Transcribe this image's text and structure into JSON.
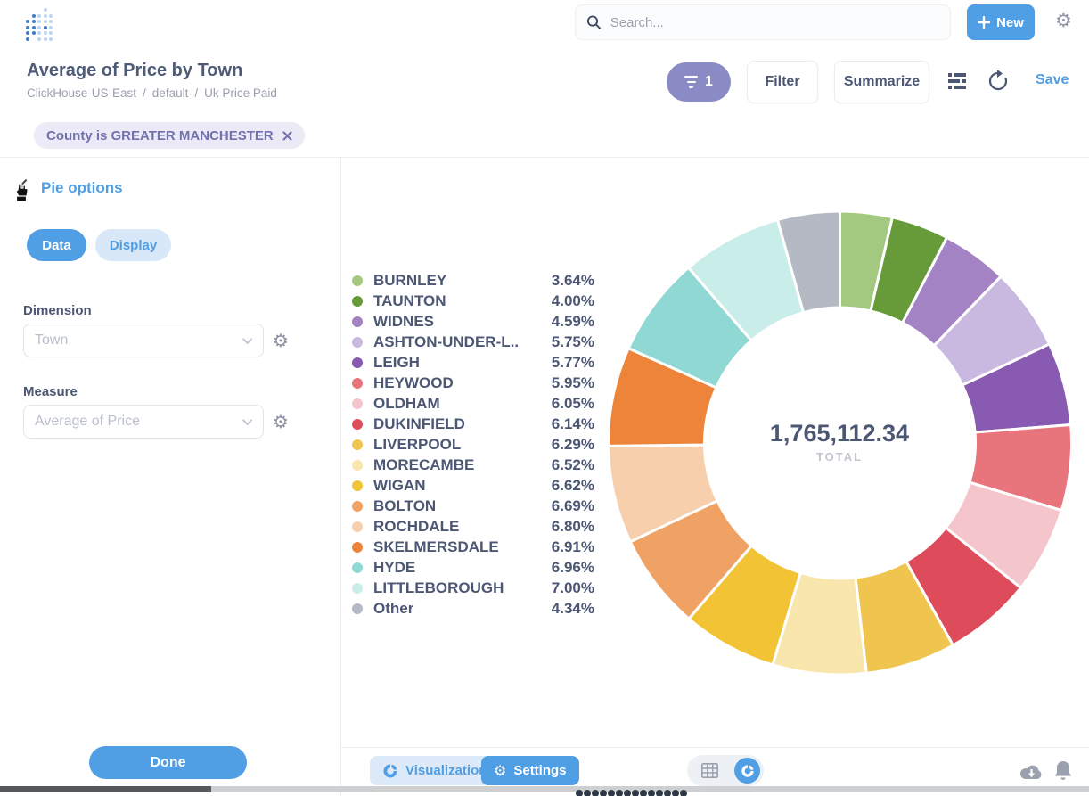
{
  "colors": {
    "accent": "#509EE3",
    "text_dark": "#4C5773",
    "text_muted": "#9AA0AE",
    "filter_purple": "#8A8BC5",
    "chip_bg": "#EDEAF7",
    "chip_text": "#7172AD"
  },
  "icons": {
    "gear": "⚙",
    "logo": "metabase-dot-grid",
    "search": "magnifier",
    "plus": "plus",
    "filter_funnel": "funnel-lines",
    "notebook": "list-lines",
    "refresh": "circular-arrow",
    "close": "x",
    "chevron_down": "chevron-down",
    "chevron_left": "chevron-left",
    "table": "grid",
    "pie": "donut-chart",
    "download": "cloud-down-arrow",
    "bell": "bell"
  },
  "topbar": {
    "search_placeholder": "Search...",
    "new_label": "New"
  },
  "question": {
    "title": "Average of Price by Town",
    "breadcrumb": {
      "database": "ClickHouse-US-East",
      "separator": "/",
      "schema": "default",
      "table": "Uk Price Paid"
    },
    "filter_count": "1",
    "filter_label": "Filter",
    "summarize_label": "Summarize",
    "save_label": "Save"
  },
  "filters": {
    "chip_label": "County is GREATER MANCHESTER"
  },
  "sidebar": {
    "title": "Pie options",
    "tabs": [
      {
        "label": "Data",
        "active": true
      },
      {
        "label": "Display",
        "active": false
      }
    ],
    "dimension_label": "Dimension",
    "dimension_value": "Town",
    "measure_label": "Measure",
    "measure_value": "Average of Price",
    "done_label": "Done"
  },
  "footer": {
    "visualization_label": "Visualization",
    "settings_label": "Settings"
  },
  "chart_data": {
    "type": "pie",
    "subtype": "donut",
    "title": "Average of Price by Town",
    "legend_position": "left",
    "clockwise": true,
    "start_angle": "top",
    "total_value": "1,765,112.34",
    "total_label": "TOTAL",
    "categories": [
      "BURNLEY",
      "TAUNTON",
      "WIDNES",
      "ASHTON-UNDER-L..",
      "LEIGH",
      "HEYWOOD",
      "OLDHAM",
      "DUKINFIELD",
      "LIVERPOOL",
      "MORECAMBE",
      "WIGAN",
      "BOLTON",
      "ROCHDALE",
      "SKELMERSDALE",
      "HYDE",
      "LITTLEBOROUGH",
      "Other"
    ],
    "values": [
      3.64,
      4.0,
      4.59,
      5.75,
      5.77,
      5.95,
      6.05,
      6.14,
      6.29,
      6.52,
      6.62,
      6.69,
      6.8,
      6.91,
      6.96,
      7.0,
      4.34
    ],
    "value_labels": [
      "3.64%",
      "4.00%",
      "4.59%",
      "5.75%",
      "5.77%",
      "5.95%",
      "6.05%",
      "6.14%",
      "6.29%",
      "6.52%",
      "6.62%",
      "6.69%",
      "6.80%",
      "6.91%",
      "6.96%",
      "7.00%",
      "4.34%"
    ],
    "slice_colors": [
      "#A3C980",
      "#679A39",
      "#A483C5",
      "#C9B8E0",
      "#885AB1",
      "#E8747C",
      "#F4C6CC",
      "#DE4C5C",
      "#F0C54F",
      "#F8E6AC",
      "#F3C336",
      "#F0A265",
      "#F8CFAC",
      "#ED8439",
      "#90D8D3",
      "#C9EDE8",
      "#B5B9C4"
    ]
  }
}
